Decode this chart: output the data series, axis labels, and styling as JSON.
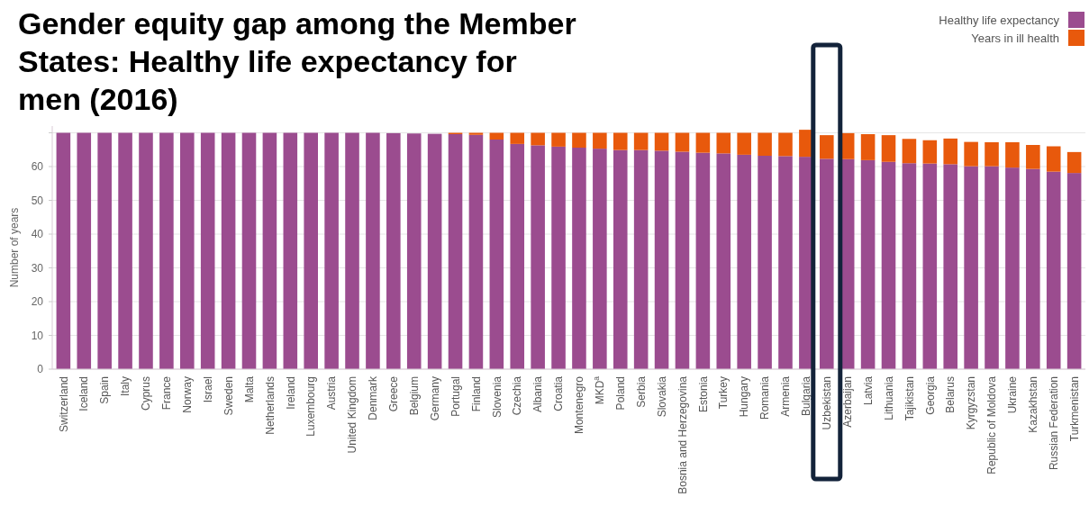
{
  "chart_data": {
    "type": "bar",
    "stacked": true,
    "title": "Gender equity gap among the Member States: Healthy life expectancy for men (2016)",
    "ylabel": "Number of years",
    "categories": [
      "Switzerland",
      "Iceland",
      "Spain",
      "Italy",
      "Cyprus",
      "France",
      "Norway",
      "Israel",
      "Sweden",
      "Malta",
      "Netherlands",
      "Ireland",
      "Luxembourg",
      "Austria",
      "United Kingdom",
      "Denmark",
      "Greece",
      "Belgium",
      "Germany",
      "Portugal",
      "Finland",
      "Slovenia",
      "Czechia",
      "Albania",
      "Croatia",
      "Montenegro",
      "MKD$^{a}$",
      "Poland",
      "Serbia",
      "Slovakia",
      "Bosnia and Herzegovina",
      "Estonia",
      "Turkey",
      "Hungary",
      "Romania",
      "Armenia",
      "Bulgaria",
      "Uzbekistan",
      "Azerbaijan",
      "Latvia",
      "Lithuania",
      "Tajikistan",
      "Georgia",
      "Belarus",
      "Kyrgyzstan",
      "Republic of Moldova",
      "Ukraine",
      "Kazakhstan",
      "Russian Federation",
      "Turkmenistan"
    ],
    "series": [
      {
        "name": "Healthy life expectancy",
        "color": "#9b4c8f",
        "values": [
          70,
          70,
          70,
          70,
          70,
          70,
          70,
          70,
          70,
          70,
          70,
          70,
          70,
          70,
          70,
          70,
          69.9,
          69.8,
          69.7,
          69.6,
          69.4,
          68.0,
          66.7,
          66.3,
          65.9,
          65.6,
          65.3,
          64.9,
          64.9,
          64.7,
          64.4,
          64.1,
          63.9,
          63.5,
          63.2,
          63.1,
          62.9,
          62.3,
          62.2,
          61.9,
          61.4,
          61.0,
          60.9,
          60.7,
          60.1,
          60.1,
          59.7,
          59.3,
          58.5,
          58.1
        ]
      },
      {
        "name": "Years in ill health",
        "color": "#e8590c",
        "values": [
          null,
          null,
          null,
          null,
          null,
          null,
          null,
          null,
          null,
          null,
          null,
          null,
          null,
          null,
          null,
          null,
          null,
          null,
          null,
          0.4,
          0.6,
          2.0,
          3.3,
          3.7,
          4.1,
          4.4,
          4.7,
          5.1,
          5.1,
          5.3,
          5.6,
          5.9,
          6.1,
          6.5,
          6.8,
          6.9,
          8.0,
          7.0,
          7.7,
          7.7,
          7.9,
          7.2,
          6.9,
          7.6,
          7.2,
          7.1,
          7.5,
          7.1,
          7.5,
          6.2
        ]
      }
    ],
    "ylim": [
      0,
      72
    ],
    "yticks": [
      0,
      10,
      20,
      30,
      40,
      50,
      60,
      {
        "value": 70,
        "label": null
      }
    ],
    "grid": "y",
    "legend": "top right"
  }
}
